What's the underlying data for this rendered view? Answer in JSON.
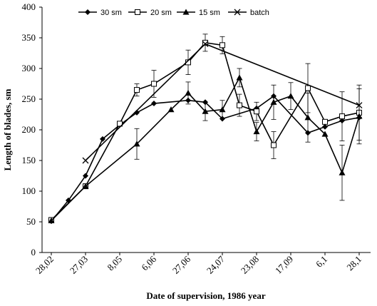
{
  "chart_data": {
    "type": "line",
    "title": "",
    "xlabel": "Date of supervision, 1986 year",
    "ylabel": "Length of blades, sm",
    "ylim": [
      0,
      400
    ],
    "yticks": [
      0,
      50,
      100,
      150,
      200,
      250,
      300,
      350,
      400
    ],
    "xlim": [
      0,
      16
    ],
    "xticks": [
      {
        "x": 0,
        "label": "28,02"
      },
      {
        "x": 2,
        "label": "27,03"
      },
      {
        "x": 4,
        "label": "8,05"
      },
      {
        "x": 6,
        "label": "6,06"
      },
      {
        "x": 8,
        "label": "27,06"
      },
      {
        "x": 10,
        "label": "24,07"
      },
      {
        "x": 12,
        "label": "23,08"
      },
      {
        "x": 14,
        "label": "17,09"
      },
      {
        "x": 16,
        "label": "6,1"
      },
      {
        "x": 18,
        "label": "28,1"
      }
    ],
    "grid": false,
    "legend_position": "top",
    "series": [
      {
        "name": "30 sm",
        "marker": "diamond",
        "points": [
          {
            "x": 0,
            "y": 51
          },
          {
            "x": 1,
            "y": 85
          },
          {
            "x": 2,
            "y": 125
          },
          {
            "x": 3,
            "y": 185
          },
          {
            "x": 4,
            "y": 208
          },
          {
            "x": 5,
            "y": 228
          },
          {
            "x": 6,
            "y": 243
          },
          {
            "x": 8,
            "y": 248
          },
          {
            "x": 9,
            "y": 245
          },
          {
            "x": 10,
            "y": 218
          },
          {
            "x": 12,
            "y": 235
          },
          {
            "x": 13,
            "y": 255
          },
          {
            "x": 15,
            "y": 195
          },
          {
            "x": 16,
            "y": 205
          },
          {
            "x": 17,
            "y": 215
          },
          {
            "x": 18,
            "y": 220
          }
        ]
      },
      {
        "name": "20 sm",
        "marker": "square-open",
        "points": [
          {
            "x": 0,
            "y": 53,
            "err": 0
          },
          {
            "x": 2,
            "y": 108,
            "err": 0
          },
          {
            "x": 4,
            "y": 210,
            "err": 0
          },
          {
            "x": 5,
            "y": 265,
            "err": 10
          },
          {
            "x": 6,
            "y": 275,
            "err": 22
          },
          {
            "x": 8,
            "y": 310,
            "err": 20
          },
          {
            "x": 9,
            "y": 342,
            "err": 14
          },
          {
            "x": 10,
            "y": 338,
            "err": 14
          },
          {
            "x": 11,
            "y": 240,
            "err": 18
          },
          {
            "x": 12,
            "y": 230,
            "err": 15
          },
          {
            "x": 13,
            "y": 175,
            "err": 22
          },
          {
            "x": 15,
            "y": 268,
            "err": 40
          },
          {
            "x": 16,
            "y": 213,
            "err": 0
          },
          {
            "x": 17,
            "y": 222,
            "err": 40
          },
          {
            "x": 18,
            "y": 228,
            "err": 45
          }
        ]
      },
      {
        "name": "15 sm",
        "marker": "triangle",
        "points": [
          {
            "x": 0,
            "y": 52,
            "err": 0
          },
          {
            "x": 2,
            "y": 108,
            "err": 0
          },
          {
            "x": 5,
            "y": 177,
            "err": 25
          },
          {
            "x": 7,
            "y": 233,
            "err": 0
          },
          {
            "x": 8,
            "y": 260,
            "err": 18
          },
          {
            "x": 9,
            "y": 230,
            "err": 15
          },
          {
            "x": 10,
            "y": 233,
            "err": 15
          },
          {
            "x": 11,
            "y": 285,
            "err": 15
          },
          {
            "x": 12,
            "y": 197,
            "err": 15
          },
          {
            "x": 13,
            "y": 245,
            "err": 28
          },
          {
            "x": 14,
            "y": 255,
            "err": 22
          },
          {
            "x": 15,
            "y": 220,
            "err": 40
          },
          {
            "x": 16,
            "y": 193,
            "err": 0
          },
          {
            "x": 17,
            "y": 130,
            "err": 45
          },
          {
            "x": 18,
            "y": 222,
            "err": 45
          }
        ]
      },
      {
        "name": "batch",
        "marker": "x",
        "points": [
          {
            "x": 2,
            "y": 150
          },
          {
            "x": 9,
            "y": 340
          },
          {
            "x": 18,
            "y": 240
          }
        ]
      }
    ]
  }
}
